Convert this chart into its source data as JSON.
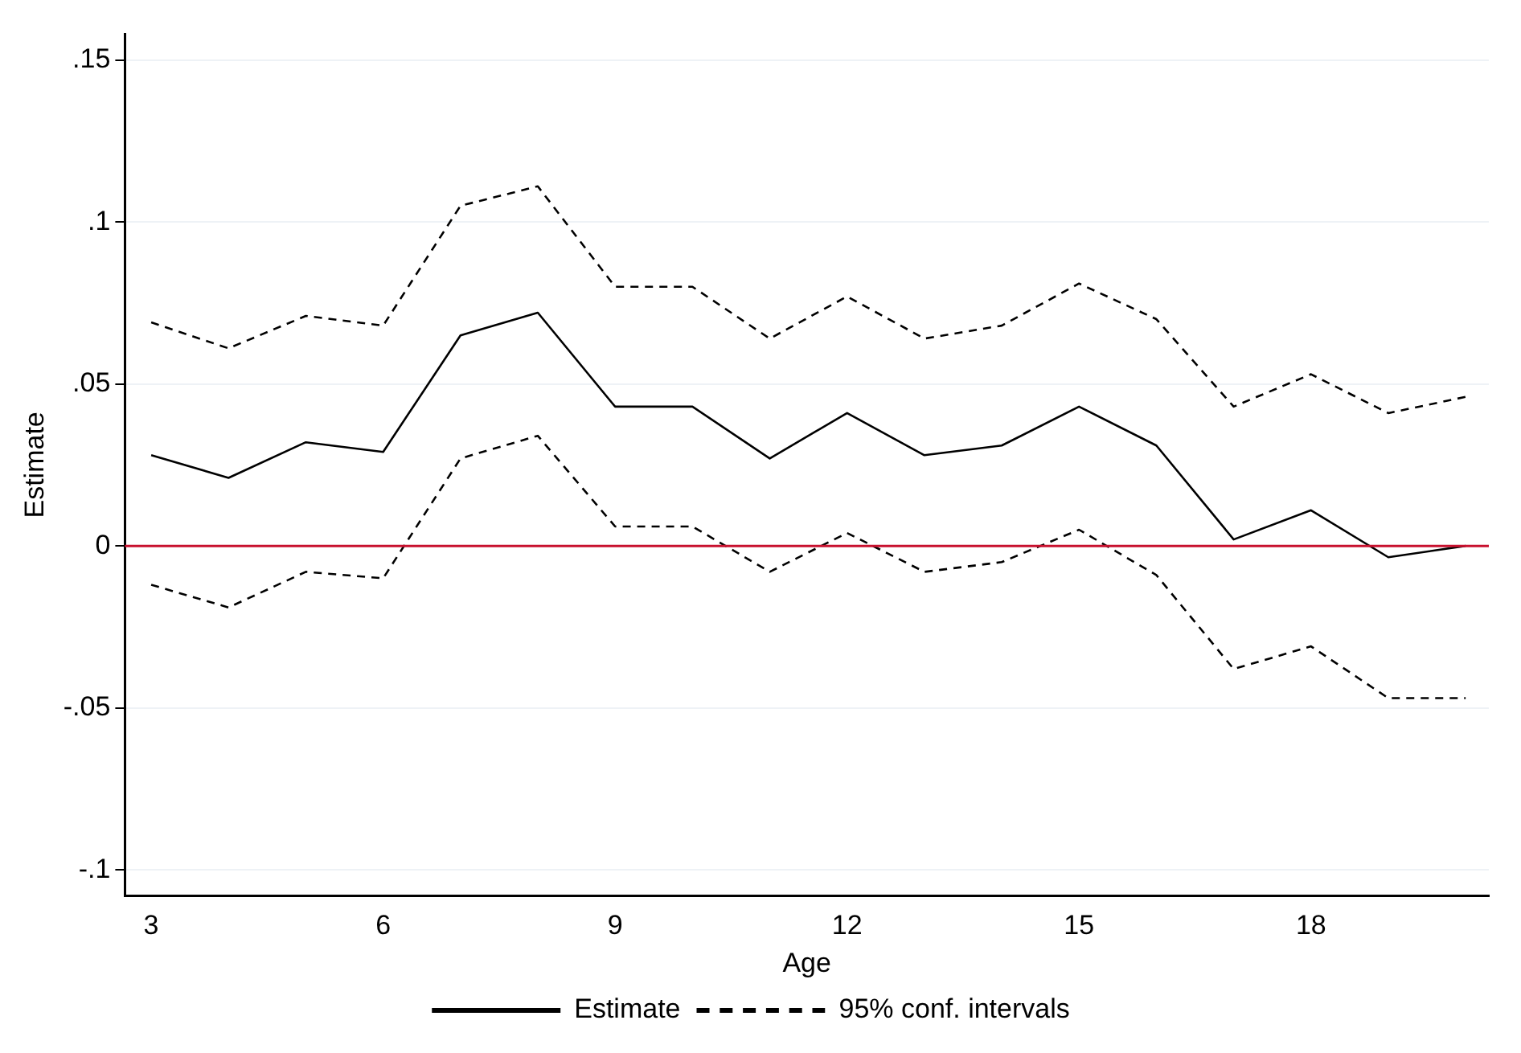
{
  "chart_data": {
    "type": "line",
    "xlabel": "Age",
    "ylabel": "Estimate",
    "x": [
      3,
      4,
      5,
      6,
      7,
      8,
      9,
      10,
      11,
      12,
      13,
      14,
      15,
      16,
      17,
      18,
      19,
      20
    ],
    "series": [
      {
        "name": "Estimate",
        "color": "#000000",
        "line_style": "solid",
        "values": [
          0.028,
          0.021,
          0.032,
          0.029,
          0.065,
          0.072,
          0.043,
          0.043,
          0.027,
          0.041,
          0.028,
          0.031,
          0.043,
          0.031,
          0.002,
          0.011,
          -0.0035,
          0
        ]
      },
      {
        "name": "95% conf. intervals",
        "color": "#000000",
        "line_style": "dashed",
        "values": [
          0.069,
          0.061,
          0.071,
          0.068,
          0.105,
          0.111,
          0.08,
          0.08,
          0.064,
          0.077,
          0.064,
          0.068,
          0.081,
          0.07,
          0.043,
          0.053,
          0.041,
          0.046
        ]
      },
      {
        "color": "#000000",
        "line_style": "dashed",
        "values": [
          -0.012,
          -0.019,
          -0.008,
          -0.01,
          0.027,
          0.034,
          0.006,
          0.006,
          -0.008,
          0.004,
          -0.008,
          -0.005,
          0.005,
          -0.009,
          -0.038,
          -0.031,
          -0.047,
          -0.047
        ]
      }
    ],
    "xlim": [
      2.66,
      20.3
    ],
    "xticks": [
      3,
      6,
      9,
      12,
      15,
      18
    ],
    "ylim": [
      -0.108,
      0.158
    ],
    "yticks": [
      {
        "value": -0.1,
        "label": "-.1"
      },
      {
        "value": -0.05,
        "label": "-.05"
      },
      {
        "value": 0,
        "label": "0"
      },
      {
        "value": 0.05,
        "label": ".05"
      },
      {
        "value": 0.1,
        "label": ".1"
      },
      {
        "value": 0.15,
        "label": ".15"
      }
    ],
    "ref_lines": [
      {
        "axis": "y",
        "value": 0,
        "color": "#c8102e"
      }
    ],
    "grid": "y",
    "legend": "bottom",
    "marker": "none"
  }
}
